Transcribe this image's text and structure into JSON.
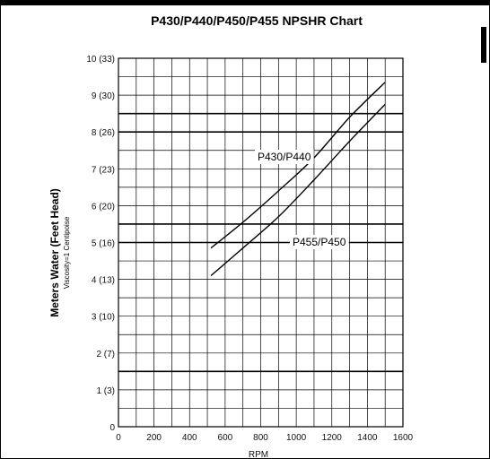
{
  "chart_data": {
    "type": "line",
    "title": "P430/P440/P450/P455 NPSHR Chart",
    "xlabel": "RPM",
    "ylabel": "Meters Water (Feet Head)",
    "ylabel_sub": "Viscosity=1 Centipoise",
    "xlim": [
      0,
      1600
    ],
    "ylim": [
      0,
      10
    ],
    "x_ticks": [
      "0",
      "200",
      "400",
      "600",
      "800",
      "1000",
      "1200",
      "1400",
      "1600"
    ],
    "y_ticks": [
      "0",
      "1 (3)",
      "2 (7)",
      "3 (10)",
      "4 (13)",
      "5 (16)",
      "6 (20)",
      "7 (23)",
      "8 (26)",
      "9 (30)",
      "10 (33)"
    ],
    "grid": true,
    "series": [
      {
        "name": "P430/P440",
        "x": [
          520,
          700,
          900,
          1100,
          1300,
          1500
        ],
        "y": [
          4.85,
          5.55,
          6.4,
          7.3,
          8.4,
          9.35
        ]
      },
      {
        "name": "P455/P450",
        "x": [
          520,
          700,
          900,
          1100,
          1300,
          1500
        ],
        "y": [
          4.1,
          4.85,
          5.7,
          6.7,
          7.75,
          8.75
        ]
      }
    ]
  }
}
